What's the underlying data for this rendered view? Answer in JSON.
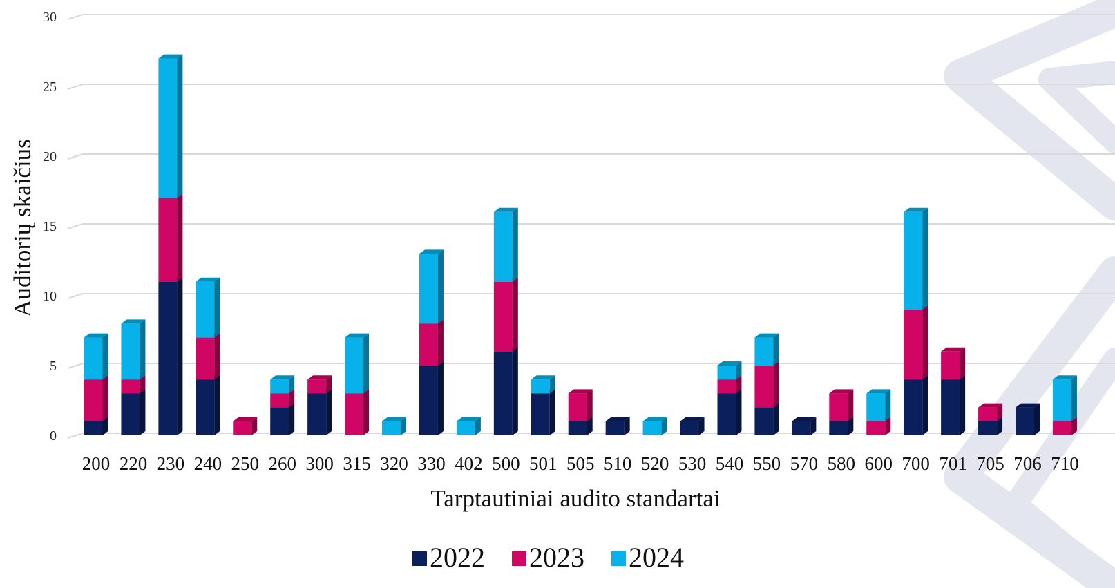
{
  "chart_data": {
    "type": "bar",
    "stacked": true,
    "three_d": true,
    "title": "",
    "xlabel": "Tarptautiniai audito standartai",
    "ylabel": "Auditorių skaičius",
    "ylim": [
      0,
      30
    ],
    "yticks": [
      "0",
      "5",
      "10",
      "15",
      "20",
      "25",
      "30"
    ],
    "grid": true,
    "legend_position": "bottom",
    "categories": [
      "200",
      "220",
      "230",
      "240",
      "250",
      "260",
      "300",
      "315",
      "320",
      "330",
      "402",
      "500",
      "501",
      "505",
      "510",
      "520",
      "530",
      "540",
      "550",
      "570",
      "580",
      "600",
      "700",
      "701",
      "705",
      "706",
      "710"
    ],
    "series": [
      {
        "name": "2022",
        "color": "#0b1f5c",
        "values": [
          1,
          3,
          11,
          4,
          0,
          2,
          3,
          0,
          0,
          5,
          0,
          6,
          3,
          1,
          1,
          0,
          1,
          3,
          2,
          1,
          1,
          0,
          4,
          4,
          1,
          2,
          0
        ]
      },
      {
        "name": "2023",
        "color": "#d10563",
        "values": [
          3,
          1,
          6,
          3,
          1,
          1,
          1,
          3,
          0,
          3,
          0,
          5,
          0,
          2,
          0,
          0,
          0,
          1,
          3,
          0,
          2,
          1,
          5,
          2,
          1,
          0,
          1
        ]
      },
      {
        "name": "2024",
        "color": "#07b2ea",
        "values": [
          3,
          4,
          10,
          4,
          0,
          1,
          0,
          4,
          1,
          5,
          1,
          5,
          1,
          0,
          0,
          1,
          0,
          1,
          2,
          0,
          0,
          2,
          7,
          0,
          0,
          0,
          3
        ]
      }
    ]
  },
  "watermark": {
    "color": "#e3e5ef"
  }
}
